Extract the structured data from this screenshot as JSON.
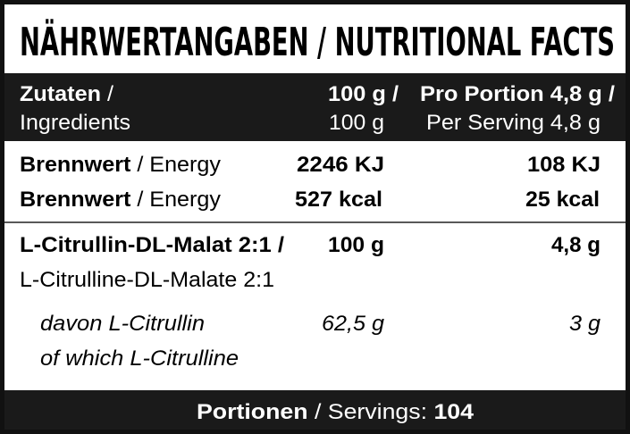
{
  "title": "NÄHRWERTANGABEN / NUTRITIONAL FACTS",
  "table": {
    "head": {
      "label": {
        "bold": "Zutaten",
        "rest": "/",
        "line2": "Ingredients"
      },
      "per100": [
        "100 g /",
        "100 g"
      ],
      "serving": [
        "Pro Portion 4,8 g /",
        "Per Serving 4,8 g"
      ]
    },
    "rows": [
      {
        "label": [
          "Brennwert",
          "/ Energy"
        ],
        "per100": "2246 KJ",
        "serving": "108 KJ"
      },
      {
        "label": [
          "Brennwert",
          "/ Energy"
        ],
        "per100": "527 kcal",
        "serving": "25 kcal"
      },
      {
        "label": [
          "L-Citrullin-DL-Malat 2:1 /",
          "L-Citrulline-DL-Malate 2:1"
        ],
        "per100": "100 g",
        "serving": "4,8 g"
      },
      {
        "label": [
          "davon L-Citrullin",
          "of which L-Citrulline"
        ],
        "per100": "62,5 g",
        "serving": "3 g"
      }
    ]
  },
  "footer": {
    "bold": "Portionen",
    "rest": "/ Servings:",
    "count": "104"
  }
}
